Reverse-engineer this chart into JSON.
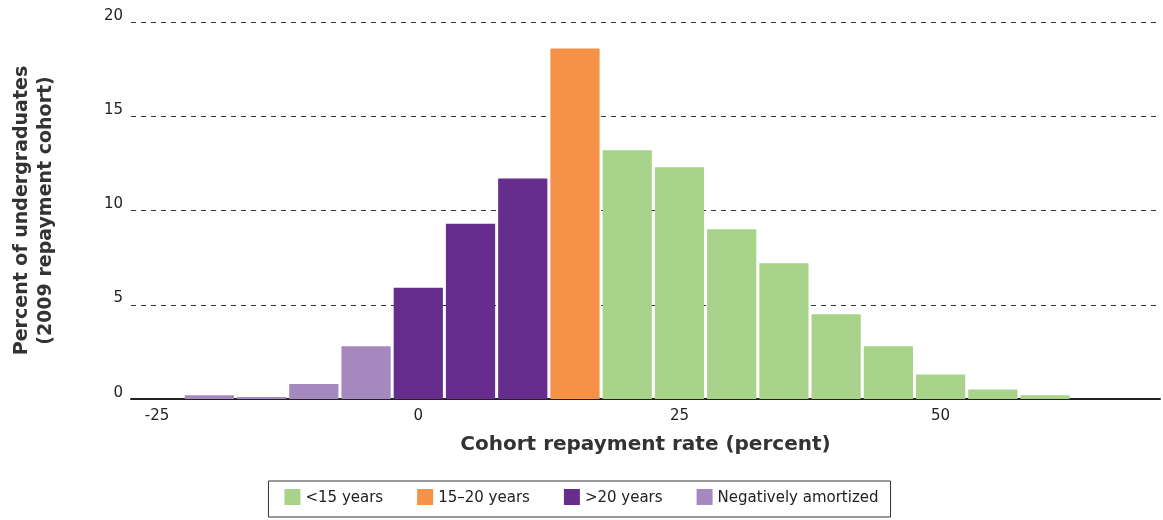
{
  "chart_data": {
    "type": "histogram",
    "xlabel": "Cohort repayment rate (percent)",
    "ylabel": "Percent of undergraduates\n(2009 repayment cohort)",
    "bins": [
      -22.5,
      -17.5,
      -12.5,
      -7.5,
      -2.5,
      2.5,
      7.5,
      12.5,
      17.5,
      22.5,
      27.5,
      32.5,
      37.5,
      42.5,
      47.5,
      52.5,
      57.5,
      62.5
    ],
    "series": [
      {
        "name": "<15 years",
        "color": "#a8d38b",
        "values": [
          null,
          null,
          null,
          null,
          null,
          null,
          null,
          null,
          13.2,
          12.3,
          9.0,
          7.2,
          4.5,
          2.8,
          1.3,
          0.5,
          0.2
        ]
      },
      {
        "name": "15–20 years",
        "color": "#f59248",
        "values": [
          null,
          null,
          null,
          null,
          null,
          null,
          null,
          18.6,
          null,
          null,
          null,
          null,
          null,
          null,
          null,
          null,
          null
        ]
      },
      {
        "name": ">20 years",
        "color": "#662d8c",
        "values": [
          null,
          null,
          null,
          null,
          5.9,
          9.3,
          11.7,
          null,
          null,
          null,
          null,
          null,
          null,
          null,
          null,
          null,
          null
        ]
      },
      {
        "name": "Negatively amortized",
        "color": "#a488be",
        "values": [
          0.2,
          0.1,
          0.8,
          2.8,
          null,
          null,
          null,
          null,
          null,
          null,
          null,
          null,
          null,
          null,
          null,
          null,
          null
        ]
      }
    ],
    "xlim": [
      -27.5,
      71
    ],
    "xticks": [
      -25,
      0,
      25,
      50
    ],
    "ylim": [
      0,
      20
    ],
    "yticks": [
      0,
      5,
      10,
      15,
      20
    ],
    "grid": "y",
    "legend": "bottom"
  }
}
